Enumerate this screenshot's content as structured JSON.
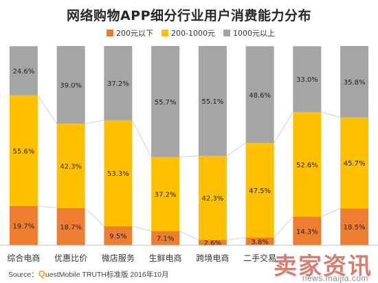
{
  "chart_data": {
    "type": "bar",
    "stacked": true,
    "title": "网络购物APP细分行业用户消费能力分布",
    "categories": [
      "综合电商",
      "优惠比价",
      "微店服务",
      "生鲜电商",
      "跨境电商",
      "二手交易",
      "",
      ""
    ],
    "series": [
      {
        "name": "200元以下",
        "color": "#ed7d31",
        "values": [
          19.7,
          18.7,
          9.5,
          7.1,
          2.6,
          3.8,
          14.3,
          18.5
        ],
        "labels": [
          "19.7%",
          "18.7%",
          "9.5%",
          "7.1%",
          "2.6%",
          "3.8%",
          "14.3%",
          "18.5%"
        ]
      },
      {
        "name": "200-1000元",
        "color": "#ffc000",
        "values": [
          55.6,
          42.3,
          53.3,
          37.2,
          42.3,
          47.5,
          52.6,
          45.7
        ],
        "labels": [
          "55.6%",
          "42.3%",
          "53.3%",
          "37.2%",
          "42.3%",
          "47.5%",
          "52.6%",
          "45.7%"
        ]
      },
      {
        "name": "1000元以上",
        "color": "#a5a5a5",
        "values": [
          24.6,
          39.0,
          37.2,
          55.7,
          55.1,
          48.6,
          33.0,
          35.8
        ],
        "labels": [
          "24.6%",
          "39.0%",
          "37.2%",
          "55.7%",
          "55.1%",
          "48.6%",
          "33.0%",
          "35.8%"
        ]
      }
    ],
    "ylim": [
      0,
      100
    ],
    "legend_position": "top",
    "connector_lines": true
  },
  "source": {
    "prefix": "Source：",
    "q": "Q",
    "rest": "uestMobile TRUTH标准版 2016年10月"
  },
  "watermark": {
    "text": "卖家资讯",
    "url": "news.maijia.com"
  }
}
